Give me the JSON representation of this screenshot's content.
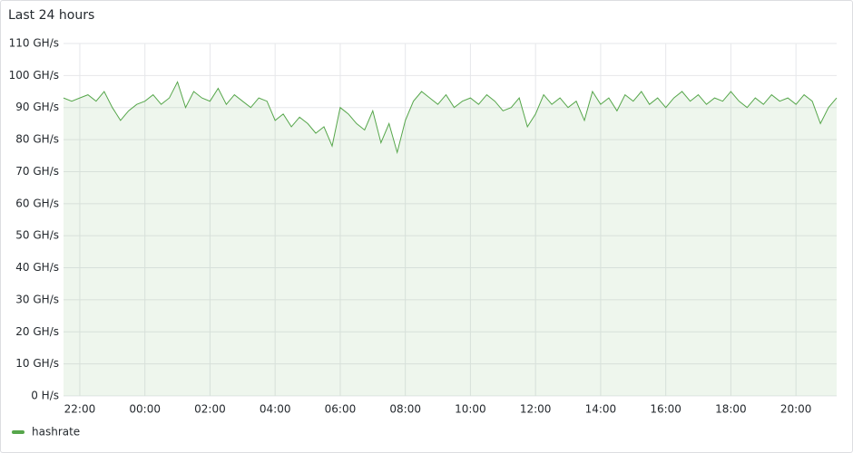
{
  "chart_data": {
    "type": "line",
    "title": "Last 24 hours",
    "categories": [
      "21:30",
      "21:45",
      "22:00",
      "22:15",
      "22:30",
      "22:45",
      "23:00",
      "23:15",
      "23:30",
      "23:45",
      "00:00",
      "00:15",
      "00:30",
      "00:45",
      "01:00",
      "01:15",
      "01:30",
      "01:45",
      "02:00",
      "02:15",
      "02:30",
      "02:45",
      "03:00",
      "03:15",
      "03:30",
      "03:45",
      "04:00",
      "04:15",
      "04:30",
      "04:45",
      "05:00",
      "05:15",
      "05:30",
      "05:45",
      "06:00",
      "06:15",
      "06:30",
      "06:45",
      "07:00",
      "07:15",
      "07:30",
      "07:45",
      "08:00",
      "08:15",
      "08:30",
      "08:45",
      "09:00",
      "09:15",
      "09:30",
      "09:45",
      "10:00",
      "10:15",
      "10:30",
      "10:45",
      "11:00",
      "11:15",
      "11:30",
      "11:45",
      "12:00",
      "12:15",
      "12:30",
      "12:45",
      "13:00",
      "13:15",
      "13:30",
      "13:45",
      "14:00",
      "14:15",
      "14:30",
      "14:45",
      "15:00",
      "15:15",
      "15:30",
      "15:45",
      "16:00",
      "16:15",
      "16:30",
      "16:45",
      "17:00",
      "17:15",
      "17:30",
      "17:45",
      "18:00",
      "18:15",
      "18:30",
      "18:45",
      "19:00",
      "19:15",
      "19:30",
      "19:45",
      "20:00",
      "20:15",
      "20:30",
      "20:45",
      "21:00",
      "21:15"
    ],
    "series": [
      {
        "name": "hashrate",
        "color": "#56a64b",
        "values": [
          93,
          92,
          93,
          94,
          92,
          95,
          90,
          86,
          89,
          91,
          92,
          94,
          91,
          93,
          98,
          90,
          95,
          93,
          92,
          96,
          91,
          94,
          92,
          90,
          93,
          92,
          86,
          88,
          84,
          87,
          85,
          82,
          84,
          78,
          90,
          88,
          85,
          83,
          89,
          79,
          85,
          76,
          86,
          92,
          95,
          93,
          91,
          94,
          90,
          92,
          93,
          91,
          94,
          92,
          89,
          90,
          93,
          84,
          88,
          94,
          91,
          93,
          90,
          92,
          86,
          95,
          91,
          93,
          89,
          94,
          92,
          95,
          91,
          93,
          90,
          93,
          95,
          92,
          94,
          91,
          93,
          92,
          95,
          92,
          90,
          93,
          91,
          94,
          92,
          93,
          91,
          94,
          92,
          85,
          90,
          93
        ]
      }
    ],
    "xticks": [
      "22:00",
      "00:00",
      "02:00",
      "04:00",
      "06:00",
      "08:00",
      "10:00",
      "12:00",
      "14:00",
      "16:00",
      "18:00",
      "20:00"
    ],
    "ylim": [
      0,
      110
    ],
    "yticks": [
      {
        "value": 0,
        "label": "0 H/s"
      },
      {
        "value": 10,
        "label": "10 GH/s"
      },
      {
        "value": 20,
        "label": "20 GH/s"
      },
      {
        "value": 30,
        "label": "30 GH/s"
      },
      {
        "value": 40,
        "label": "40 GH/s"
      },
      {
        "value": 50,
        "label": "50 GH/s"
      },
      {
        "value": 60,
        "label": "60 GH/s"
      },
      {
        "value": 70,
        "label": "70 GH/s"
      },
      {
        "value": 80,
        "label": "80 GH/s"
      },
      {
        "value": 90,
        "label": "90 GH/s"
      },
      {
        "value": 100,
        "label": "100 GH/s"
      },
      {
        "value": 110,
        "label": "110 GH/s"
      }
    ],
    "grid": true
  }
}
